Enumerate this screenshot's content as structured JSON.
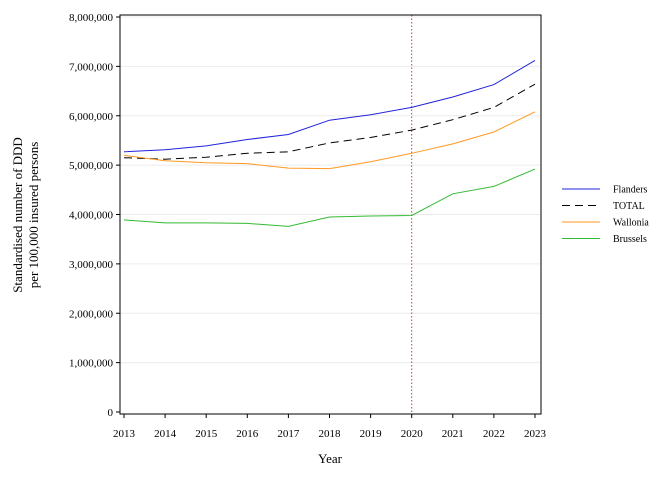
{
  "chart_data": {
    "type": "line",
    "xlabel": "Year",
    "ylabel_lines": [
      "Standardised number of DDD",
      "per 100,000 insured persons"
    ],
    "x": [
      2013,
      2014,
      2015,
      2016,
      2017,
      2018,
      2019,
      2020,
      2021,
      2022,
      2023
    ],
    "ylim": [
      0,
      8000000
    ],
    "y_ticks": [
      0,
      1000000,
      2000000,
      3000000,
      4000000,
      5000000,
      6000000,
      7000000,
      8000000
    ],
    "y_tick_labels": [
      "0",
      "1,000,000",
      "2,000,000",
      "3,000,000",
      "4,000,000",
      "5,000,000",
      "6,000,000",
      "7,000,000",
      "8,000,000"
    ],
    "x_tick_labels": [
      "2013",
      "2014",
      "2015",
      "2016",
      "2017",
      "2018",
      "2019",
      "2020",
      "2021",
      "2022",
      "2023"
    ],
    "reference_line_x": 2020,
    "grid": "horizontal",
    "legend_position": "right",
    "series": [
      {
        "name": "Flanders",
        "color": "#2222dd",
        "dash": "solid",
        "values": [
          5270000,
          5310000,
          5390000,
          5520000,
          5620000,
          5910000,
          6020000,
          6170000,
          6380000,
          6630000,
          7120000
        ]
      },
      {
        "name": "TOTAL",
        "color": "#000000",
        "dash": "dashed",
        "values": [
          5150000,
          5120000,
          5160000,
          5240000,
          5270000,
          5450000,
          5560000,
          5710000,
          5920000,
          6170000,
          6640000
        ]
      },
      {
        "name": "Wallonia",
        "color": "#ff9922",
        "dash": "solid",
        "values": [
          5200000,
          5090000,
          5050000,
          5030000,
          4940000,
          4930000,
          5070000,
          5240000,
          5430000,
          5670000,
          6080000
        ]
      },
      {
        "name": "Brussels",
        "color": "#33bb33",
        "dash": "solid",
        "values": [
          3890000,
          3830000,
          3830000,
          3820000,
          3760000,
          3950000,
          3970000,
          3980000,
          4420000,
          4570000,
          4920000
        ]
      }
    ]
  }
}
